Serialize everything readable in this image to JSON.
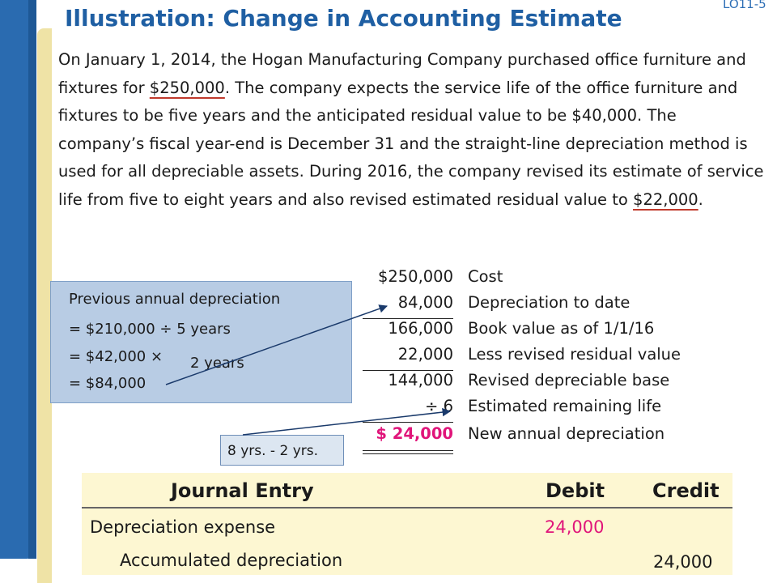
{
  "slide": {
    "title": "Illustration: Change in Accounting Estimate",
    "lo_tag": "LO11-5"
  },
  "problem": {
    "p1": "On January 1, 2014, the Hogan Manufacturing Company purchased office furniture and fixtures for ",
    "cost": "$250,000",
    "p2": ". The company expects the service life of the office furniture and fixtures to be five years and the anticipated residual value to be $40,000. The company’s fiscal year-end is December 31 and the straight-line depreciation method is used for all depreciable assets. During 2016, the company revised its estimate of service life from five to eight years and also revised estimated residual value to ",
    "residual": "$22,000",
    "p3": "."
  },
  "previous_depreciation": {
    "heading": "Previous annual depreciation",
    "line1": "= $210,000 ÷ 5 years",
    "line2a": "= $42,000  ×",
    "line2b": "2 years",
    "line3": "= $84,000"
  },
  "calculation": {
    "rows": [
      {
        "amount": "$250,000",
        "label": "Cost"
      },
      {
        "amount": "84,000",
        "label": "Depreciation to date"
      },
      {
        "amount": "166,000",
        "label": "Book value as of 1/1/16"
      },
      {
        "amount": "22,000",
        "label": "Less revised residual value"
      },
      {
        "amount": "144,000",
        "label": "Revised depreciable base"
      },
      {
        "amount": "÷ 6",
        "label": "Estimated remaining life"
      },
      {
        "amount": "$  24,000",
        "label": "New annual depreciation"
      }
    ],
    "highlight_color": "#e0157a"
  },
  "remaining_life_note": "8 yrs. - 2 yrs.",
  "journal": {
    "title": "Journal Entry",
    "debit_header": "Debit",
    "credit_header": "Credit",
    "debit_account": "Depreciation expense",
    "debit_amount": "24,000",
    "credit_account": "Accumulated depreciation",
    "credit_amount": "24,000",
    "debit_color": "#e0157a"
  }
}
